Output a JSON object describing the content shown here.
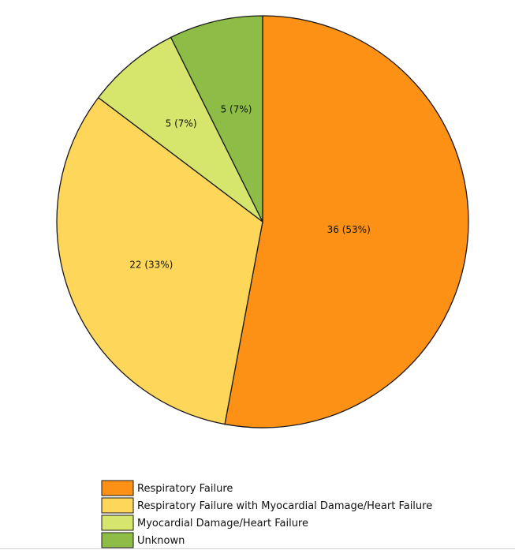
{
  "chart_data": {
    "type": "pie",
    "title": "",
    "slices": [
      {
        "label": "Respiratory Failure",
        "value": 36,
        "percent": 53,
        "display": "36 (53%)",
        "color": "#fc9116"
      },
      {
        "label": "Respiratory Failure with Myocardial Damage/Heart Failure",
        "value": 22,
        "percent": 33,
        "display": "22 (33%)",
        "color": "#fdd65a"
      },
      {
        "label": "Myocardial Damage/Heart Failure",
        "value": 5,
        "percent": 7,
        "display": "5 (7%)",
        "color": "#d6e56c"
      },
      {
        "label": "Unknown",
        "value": 5,
        "percent": 7,
        "display": "5 (7%)",
        "color": "#8dbd46"
      }
    ],
    "start_angle": "12 o'clock",
    "direction": "clockwise",
    "legend_position": "bottom-left",
    "outline_color": "#1a1a1a"
  }
}
